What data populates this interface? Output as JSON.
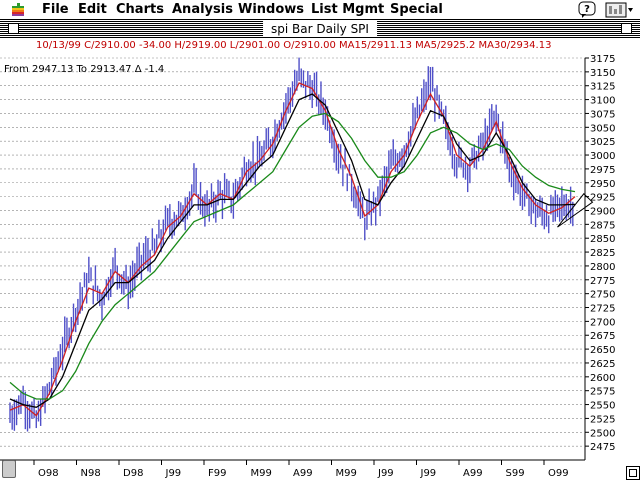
{
  "menubar": {
    "items": [
      "File",
      "Edit",
      "Charts",
      "Analysis",
      "Windows",
      "List Mgmt",
      "Special"
    ],
    "apple_icon": "apple-logo-icon",
    "help_icon": "help-balloon-icon",
    "app_icon": "application-icon"
  },
  "window": {
    "title": "spi Bar Daily  SPI"
  },
  "quote_line": "10/13/99 C/2910.00 -34.00 H/2919.00 L/2901.00 O/2910.00 MA15/2911.13 MA5/2925.2 MA30/2934.13",
  "measure_line": "From  2947.13 To  2913.47 Δ -1.4",
  "colors": {
    "bars": "#5050c8",
    "ma5": "#d02020",
    "ma15": "#000000",
    "ma30": "#1a8a1a",
    "quote_text": "#c00000"
  },
  "chart_data": {
    "type": "bar",
    "title": "spi Bar Daily  SPI",
    "ylim": [
      2450,
      3175
    ],
    "y_ticks": [
      2475,
      2500,
      2525,
      2550,
      2575,
      2600,
      2625,
      2650,
      2675,
      2700,
      2725,
      2750,
      2775,
      2800,
      2825,
      2850,
      2875,
      2900,
      2925,
      2950,
      2975,
      3000,
      3025,
      3050,
      3075,
      3100,
      3125,
      3150,
      3175
    ],
    "x_tick_labels": [
      "O98",
      "N98",
      "D98",
      "J99",
      "F99",
      "M99",
      "A99",
      "M99",
      "J99",
      "J99",
      "A99",
      "S99",
      "O99"
    ],
    "grid": true,
    "y_axis_side": "right",
    "series": [
      {
        "type": "ohlc",
        "x": [
          0,
          6,
          12,
          18,
          24,
          30,
          36,
          42,
          48,
          54,
          60,
          66,
          72,
          78,
          84,
          90,
          96,
          102,
          108,
          114,
          120,
          126,
          132,
          138,
          144,
          150,
          156,
          162,
          168,
          174,
          180,
          186,
          192,
          198,
          204,
          210,
          216,
          222,
          228,
          234,
          240,
          246,
          252,
          258
        ],
        "close": [
          2530,
          2560,
          2520,
          2580,
          2650,
          2720,
          2780,
          2740,
          2800,
          2760,
          2810,
          2830,
          2880,
          2890,
          2940,
          2900,
          2930,
          2920,
          2980,
          2990,
          3030,
          3090,
          3140,
          3120,
          3080,
          3000,
          2950,
          2880,
          2920,
          2980,
          3010,
          3070,
          3130,
          3060,
          2990,
          2980,
          3020,
          3070,
          2980,
          2930,
          2900,
          2890,
          2910,
          2910
        ]
      },
      {
        "name": "MA5",
        "type": "line",
        "x": [
          0,
          6,
          12,
          18,
          24,
          30,
          36,
          42,
          48,
          54,
          60,
          66,
          72,
          78,
          84,
          90,
          96,
          102,
          108,
          114,
          120,
          126,
          132,
          138,
          144,
          150,
          156,
          162,
          168,
          174,
          180,
          186,
          192,
          198,
          204,
          210,
          216,
          222,
          228,
          234,
          240,
          246,
          252,
          258
        ],
        "values": [
          2540,
          2550,
          2530,
          2570,
          2630,
          2700,
          2760,
          2750,
          2790,
          2770,
          2800,
          2820,
          2870,
          2890,
          2930,
          2910,
          2930,
          2920,
          2970,
          2990,
          3020,
          3080,
          3130,
          3120,
          3080,
          3010,
          2960,
          2890,
          2910,
          2970,
          3000,
          3060,
          3110,
          3070,
          3000,
          2980,
          3010,
          3060,
          2990,
          2940,
          2910,
          2895,
          2905,
          2925
        ]
      },
      {
        "name": "MA15",
        "type": "line",
        "x": [
          0,
          6,
          12,
          18,
          24,
          30,
          36,
          42,
          48,
          54,
          60,
          66,
          72,
          78,
          84,
          90,
          96,
          102,
          108,
          114,
          120,
          126,
          132,
          138,
          144,
          150,
          156,
          162,
          168,
          174,
          180,
          186,
          192,
          198,
          204,
          210,
          216,
          222,
          228,
          234,
          240,
          246,
          252,
          258
        ],
        "values": [
          2560,
          2550,
          2545,
          2560,
          2600,
          2660,
          2720,
          2740,
          2770,
          2770,
          2790,
          2810,
          2850,
          2880,
          2910,
          2910,
          2920,
          2920,
          2950,
          2980,
          3000,
          3050,
          3100,
          3110,
          3090,
          3040,
          2990,
          2920,
          2910,
          2950,
          2980,
          3030,
          3080,
          3070,
          3020,
          2990,
          3000,
          3040,
          3000,
          2950,
          2920,
          2910,
          2910,
          2911
        ]
      },
      {
        "name": "MA30",
        "type": "line",
        "x": [
          0,
          6,
          12,
          18,
          24,
          30,
          36,
          42,
          48,
          54,
          60,
          66,
          72,
          78,
          84,
          90,
          96,
          102,
          108,
          114,
          120,
          126,
          132,
          138,
          144,
          150,
          156,
          162,
          168,
          174,
          180,
          186,
          192,
          198,
          204,
          210,
          216,
          222,
          228,
          234,
          240,
          246,
          252,
          258
        ],
        "values": [
          2590,
          2570,
          2560,
          2560,
          2575,
          2610,
          2660,
          2700,
          2730,
          2750,
          2770,
          2790,
          2820,
          2850,
          2880,
          2890,
          2900,
          2910,
          2930,
          2950,
          2970,
          3010,
          3050,
          3070,
          3075,
          3060,
          3030,
          2990,
          2960,
          2960,
          2970,
          3000,
          3040,
          3050,
          3040,
          3020,
          3010,
          3020,
          3010,
          2980,
          2960,
          2945,
          2938,
          2934
        ]
      }
    ],
    "annotations": [
      {
        "type": "triangle",
        "points": [
          [
            250,
            2870
          ],
          [
            262,
            2930
          ],
          [
            266,
            2915
          ]
        ]
      }
    ]
  }
}
